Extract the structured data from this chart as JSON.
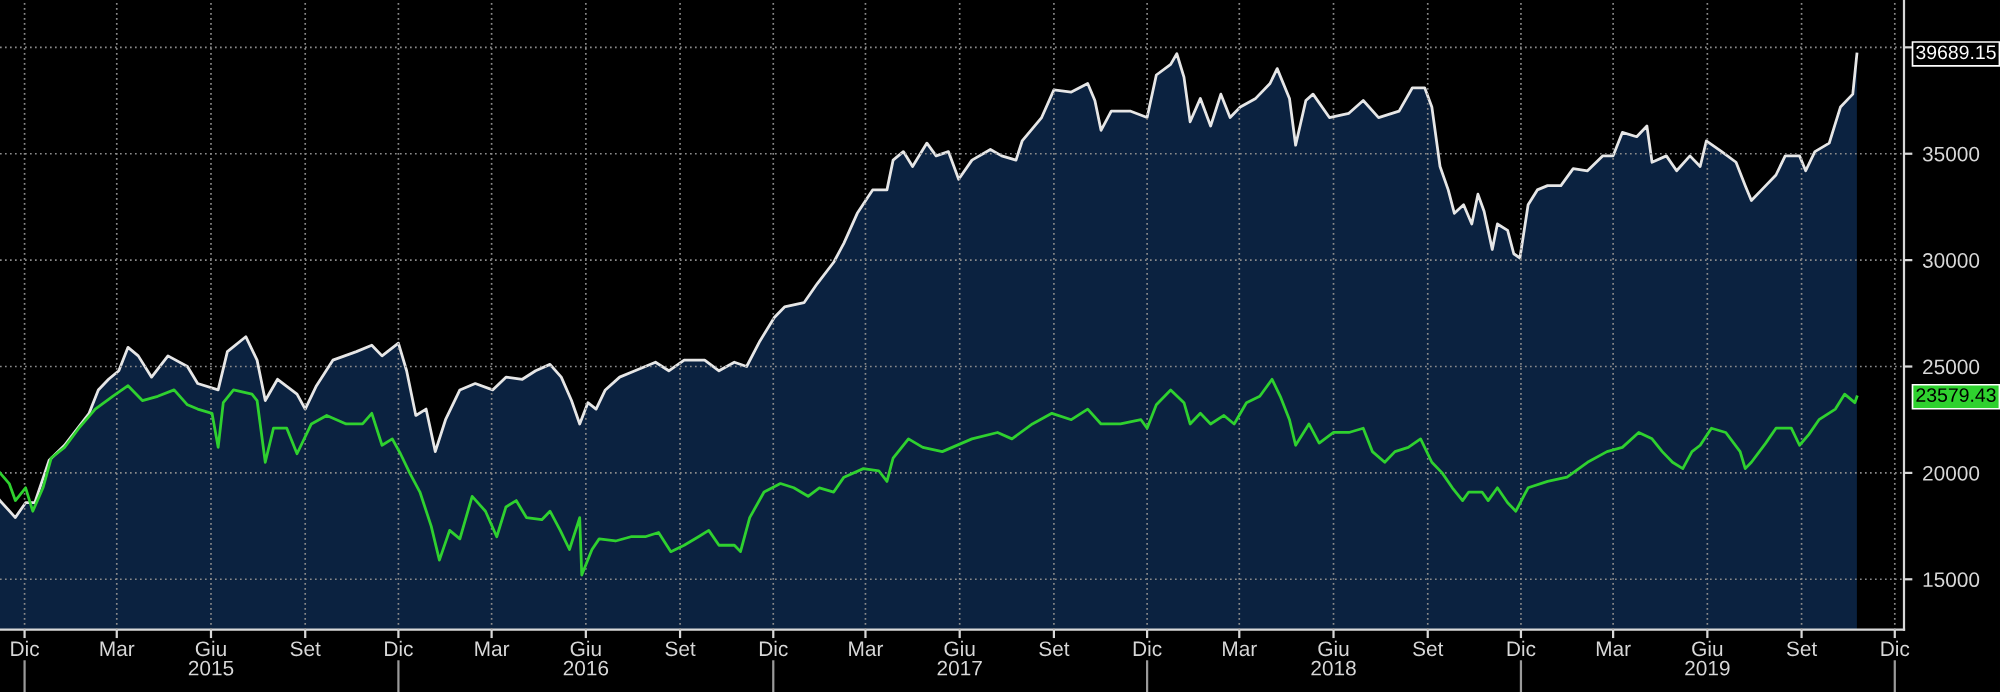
{
  "chart_data": {
    "type": "line",
    "series": [
      {
        "type": "area",
        "color": "#0b2240",
        "x": [
          "2014-11-07",
          "2014-11-22",
          "2014-12-02",
          "2014-12-11",
          "2014-12-25",
          "2015-01-09",
          "2015-02-02",
          "2015-02-11",
          "2015-02-21",
          "2015-03-03",
          "2015-03-12",
          "2015-03-22",
          "2015-04-04",
          "2015-04-20",
          "2015-05-09",
          "2015-05-19",
          "2015-06-08",
          "2015-06-17",
          "2015-07-05",
          "2015-07-16",
          "2015-07-24",
          "2015-08-05",
          "2015-08-24",
          "2015-09-01",
          "2015-09-12",
          "2015-09-28",
          "2015-10-21",
          "2015-11-05",
          "2015-11-15",
          "2015-12-01",
          "2015-12-09",
          "2015-12-18",
          "2015-12-28",
          "2016-01-06",
          "2016-01-16",
          "2016-01-30",
          "2016-02-14",
          "2016-03-02",
          "2016-03-15",
          "2016-03-31",
          "2016-04-13",
          "2016-04-27",
          "2016-05-08",
          "2016-05-18",
          "2016-05-26",
          "2016-06-03",
          "2016-06-11",
          "2016-06-20",
          "2016-07-04",
          "2016-07-19",
          "2016-08-08",
          "2016-08-21",
          "2016-09-05",
          "2016-09-25",
          "2016-10-09",
          "2016-10-24",
          "2016-11-05",
          "2016-11-18",
          "2016-12-02",
          "2016-12-12",
          "2016-12-31",
          "2017-01-13",
          "2017-01-29",
          "2017-02-08",
          "2017-02-21",
          "2017-03-08",
          "2017-03-22",
          "2017-03-28",
          "2017-04-07",
          "2017-04-16",
          "2017-04-30",
          "2017-05-09",
          "2017-05-21",
          "2017-05-31",
          "2017-06-13",
          "2017-07-01",
          "2017-07-12",
          "2017-07-26",
          "2017-08-01",
          "2017-08-20",
          "2017-09-01",
          "2017-09-18",
          "2017-10-04",
          "2017-10-11",
          "2017-10-17",
          "2017-10-27",
          "2017-11-15",
          "2017-12-01",
          "2017-12-10",
          "2017-12-24",
          "2017-12-30",
          "2018-01-06",
          "2018-01-12",
          "2018-01-22",
          "2018-02-01",
          "2018-02-11",
          "2018-02-20",
          "2018-03-02",
          "2018-03-17",
          "2018-03-31",
          "2018-04-07",
          "2018-04-19",
          "2018-04-25",
          "2018-05-05",
          "2018-05-12",
          "2018-05-28",
          "2018-06-16",
          "2018-06-30",
          "2018-07-15",
          "2018-08-04",
          "2018-08-17",
          "2018-08-29",
          "2018-09-05",
          "2018-09-13",
          "2018-09-21",
          "2018-09-27",
          "2018-10-06",
          "2018-10-14",
          "2018-10-20",
          "2018-10-26",
          "2018-11-03",
          "2018-11-08",
          "2018-11-18",
          "2018-11-24",
          "2018-11-30",
          "2018-12-08",
          "2018-12-17",
          "2018-12-27",
          "2019-01-09",
          "2019-01-21",
          "2019-02-04",
          "2019-02-19",
          "2019-03-01",
          "2019-03-10",
          "2019-03-24",
          "2019-04-03",
          "2019-04-08",
          "2019-04-22",
          "2019-05-02",
          "2019-05-15",
          "2019-05-25",
          "2019-05-31",
          "2019-06-15",
          "2019-06-29",
          "2019-07-08",
          "2019-07-14",
          "2019-07-24",
          "2019-08-07",
          "2019-08-16",
          "2019-08-30",
          "2019-09-05",
          "2019-09-14",
          "2019-09-28",
          "2019-10-09",
          "2019-10-17",
          "2019-10-21",
          "2019-10-25"
        ],
        "values": [
          18700,
          17900,
          18600,
          18600,
          20600,
          21300,
          22800,
          23900,
          24400,
          24800,
          25900,
          25500,
          24500,
          25500,
          25000,
          24200,
          23900,
          25700,
          26400,
          25300,
          23400,
          24400,
          23700,
          23000,
          24100,
          25300,
          25700,
          26000,
          25500,
          26100,
          24800,
          22700,
          23000,
          21000,
          22500,
          23900,
          24200,
          23900,
          24500,
          24400,
          24800,
          25100,
          24500,
          23400,
          22300,
          23300,
          23000,
          23900,
          24500,
          24800,
          25200,
          24800,
          25300,
          25300,
          24800,
          25200,
          25000,
          26200,
          27300,
          27800,
          28000,
          28900,
          29900,
          30800,
          32200,
          33300,
          33300,
          34700,
          35100,
          34400,
          35500,
          34900,
          35100,
          33800,
          34700,
          35200,
          34900,
          34700,
          35600,
          36700,
          38000,
          37900,
          38300,
          37500,
          36100,
          37000,
          37000,
          36700,
          38700,
          39200,
          39700,
          38600,
          36500,
          37600,
          36300,
          37800,
          36700,
          37200,
          37600,
          38300,
          39000,
          37600,
          35400,
          37500,
          37800,
          36700,
          36900,
          37500,
          36700,
          37000,
          38100,
          38100,
          37200,
          34400,
          33300,
          32200,
          32600,
          31700,
          33100,
          32300,
          30500,
          31700,
          31400,
          30300,
          30100,
          32600,
          33300,
          33500,
          33500,
          34300,
          34200,
          34900,
          34900,
          36000,
          35800,
          36300,
          34600,
          34900,
          34200,
          34900,
          34400,
          35600,
          35100,
          34600,
          33500,
          32800,
          33300,
          34000,
          34900,
          34900,
          34200,
          35100,
          35500,
          37200,
          37600,
          37800,
          39689.15
        ]
      },
      {
        "color": "#2fd12f",
        "x": [
          "2014-11-07",
          "2014-11-16",
          "2014-11-22",
          "2014-12-02",
          "2014-12-09",
          "2014-12-19",
          "2014-12-27",
          "2015-01-09",
          "2015-01-23",
          "2015-02-08",
          "2015-02-25",
          "2015-03-12",
          "2015-03-26",
          "2015-04-10",
          "2015-04-26",
          "2015-05-09",
          "2015-05-19",
          "2015-06-02",
          "2015-06-08",
          "2015-06-13",
          "2015-06-23",
          "2015-07-11",
          "2015-07-16",
          "2015-07-24",
          "2015-08-01",
          "2015-08-14",
          "2015-08-24",
          "2015-09-07",
          "2015-09-22",
          "2015-10-11",
          "2015-10-27",
          "2015-11-05",
          "2015-11-15",
          "2015-11-25",
          "2015-12-03",
          "2015-12-12",
          "2015-12-22",
          "2016-01-02",
          "2016-01-10",
          "2016-01-20",
          "2016-01-30",
          "2016-02-11",
          "2016-02-24",
          "2016-03-06",
          "2016-03-15",
          "2016-03-25",
          "2016-04-04",
          "2016-04-19",
          "2016-04-27",
          "2016-05-07",
          "2016-05-16",
          "2016-05-26",
          "2016-05-28",
          "2016-06-07",
          "2016-06-14",
          "2016-06-30",
          "2016-07-15",
          "2016-07-29",
          "2016-08-11",
          "2016-08-23",
          "2016-09-05",
          "2016-09-19",
          "2016-09-29",
          "2016-10-09",
          "2016-10-24",
          "2016-10-30",
          "2016-11-08",
          "2016-11-22",
          "2016-12-08",
          "2016-12-21",
          "2017-01-04",
          "2017-01-15",
          "2017-01-29",
          "2017-02-08",
          "2017-02-27",
          "2017-03-14",
          "2017-03-22",
          "2017-03-28",
          "2017-04-12",
          "2017-04-26",
          "2017-05-15",
          "2017-06-13",
          "2017-07-08",
          "2017-07-22",
          "2017-08-11",
          "2017-08-30",
          "2017-09-18",
          "2017-10-04",
          "2017-10-17",
          "2017-11-05",
          "2017-11-25",
          "2017-12-01",
          "2017-12-10",
          "2017-12-24",
          "2018-01-06",
          "2018-01-12",
          "2018-01-22",
          "2018-02-01",
          "2018-02-14",
          "2018-02-24",
          "2018-03-08",
          "2018-03-21",
          "2018-04-02",
          "2018-04-10",
          "2018-04-19",
          "2018-04-25",
          "2018-05-08",
          "2018-05-18",
          "2018-06-01",
          "2018-06-16",
          "2018-06-30",
          "2018-07-09",
          "2018-07-21",
          "2018-07-31",
          "2018-08-13",
          "2018-08-25",
          "2018-09-05",
          "2018-09-15",
          "2018-09-25",
          "2018-10-05",
          "2018-10-11",
          "2018-10-24",
          "2018-10-30",
          "2018-11-08",
          "2018-11-18",
          "2018-11-26",
          "2018-12-08",
          "2018-12-27",
          "2019-01-15",
          "2019-02-04",
          "2019-02-23",
          "2019-03-10",
          "2019-03-26",
          "2019-04-08",
          "2019-04-18",
          "2019-04-28",
          "2019-05-08",
          "2019-05-17",
          "2019-05-25",
          "2019-06-05",
          "2019-06-19",
          "2019-07-03",
          "2019-07-08",
          "2019-07-14",
          "2019-07-28",
          "2019-08-07",
          "2019-08-22",
          "2019-08-30",
          "2019-09-08",
          "2019-09-18",
          "2019-10-04",
          "2019-10-13",
          "2019-10-23",
          "2019-10-25"
        ],
        "values": [
          20000,
          19500,
          18700,
          19300,
          18200,
          19300,
          20700,
          21200,
          22100,
          23000,
          23600,
          24100,
          23400,
          23600,
          23900,
          23200,
          23000,
          22800,
          21200,
          23300,
          23900,
          23700,
          23400,
          20500,
          22100,
          22100,
          20900,
          22300,
          22700,
          22300,
          22300,
          22800,
          21300,
          21600,
          20900,
          20000,
          19100,
          17500,
          15900,
          17300,
          16900,
          18900,
          18200,
          17000,
          18400,
          18700,
          17900,
          17800,
          18200,
          17300,
          16400,
          17900,
          15200,
          16400,
          16900,
          16800,
          17000,
          17000,
          17200,
          16300,
          16600,
          17000,
          17300,
          16600,
          16600,
          16300,
          17900,
          19100,
          19500,
          19300,
          18900,
          19300,
          19100,
          19800,
          20200,
          20100,
          19600,
          20700,
          21600,
          21200,
          21000,
          21600,
          21900,
          21600,
          22300,
          22800,
          22500,
          23000,
          22300,
          22300,
          22500,
          22100,
          23200,
          23900,
          23300,
          22300,
          22800,
          22300,
          22700,
          22300,
          23300,
          23600,
          24400,
          23600,
          22500,
          21300,
          22300,
          21400,
          21900,
          21900,
          22100,
          21000,
          20500,
          21000,
          21200,
          21600,
          20500,
          20000,
          19300,
          18700,
          19100,
          19100,
          18700,
          19300,
          18600,
          18200,
          19300,
          19600,
          19800,
          20500,
          21000,
          21200,
          21900,
          21600,
          21000,
          20500,
          20200,
          21000,
          21300,
          22100,
          21900,
          21000,
          20200,
          20500,
          21400,
          22100,
          22100,
          21300,
          21800,
          22500,
          23000,
          23700,
          23300,
          23579.43
        ]
      }
    ],
    "xlim": [
      "2014-11-07",
      "2019-12-10"
    ],
    "xticks": [
      {
        "value": "2014-12-01",
        "label": "Dic"
      },
      {
        "value": "2015-03-01",
        "label": "Mar"
      },
      {
        "value": "2015-06-01",
        "label": "Giu"
      },
      {
        "value": "2015-09-01",
        "label": "Set"
      },
      {
        "value": "2015-12-01",
        "label": "Dic"
      },
      {
        "value": "2016-03-01",
        "label": "Mar"
      },
      {
        "value": "2016-06-01",
        "label": "Giu"
      },
      {
        "value": "2016-09-01",
        "label": "Set"
      },
      {
        "value": "2016-12-01",
        "label": "Dic"
      },
      {
        "value": "2017-03-01",
        "label": "Mar"
      },
      {
        "value": "2017-06-01",
        "label": "Giu"
      },
      {
        "value": "2017-09-01",
        "label": "Set"
      },
      {
        "value": "2017-12-01",
        "label": "Dic"
      },
      {
        "value": "2018-03-01",
        "label": "Mar"
      },
      {
        "value": "2018-06-01",
        "label": "Giu"
      },
      {
        "value": "2018-09-01",
        "label": "Set"
      },
      {
        "value": "2018-12-01",
        "label": "Dic"
      },
      {
        "value": "2019-03-01",
        "label": "Mar"
      },
      {
        "value": "2019-06-01",
        "label": "Giu"
      },
      {
        "value": "2019-09-01",
        "label": "Set"
      },
      {
        "value": "2019-12-01",
        "label": "Dic"
      }
    ],
    "x2lim": [
      "2014-11-07",
      "2019-12-10"
    ],
    "x2ticks": [
      {
        "value": "2014-12-01",
        "label": null
      },
      {
        "value": "2015-06-01",
        "label": "2015"
      },
      {
        "value": "2015-12-01",
        "label": null
      },
      {
        "value": "2016-06-01",
        "label": "2016"
      },
      {
        "value": "2016-12-01",
        "label": null
      },
      {
        "value": "2017-06-01",
        "label": "2017"
      },
      {
        "value": "2017-12-01",
        "label": null
      },
      {
        "value": "2018-06-01",
        "label": "2018"
      },
      {
        "value": "2018-12-01",
        "label": null
      },
      {
        "value": "2019-06-01",
        "label": "2019"
      },
      {
        "value": "2019-12-01",
        "label": null
      }
    ],
    "ylim": [
      12630,
      42225
    ],
    "yticks": [
      15000,
      20000,
      25000,
      30000,
      35000,
      {
        "value": 40000,
        "label": null
      }
    ],
    "grid": true,
    "line_style": "solid",
    "annotations": [
      "39689.15",
      "23579.43"
    ]
  }
}
